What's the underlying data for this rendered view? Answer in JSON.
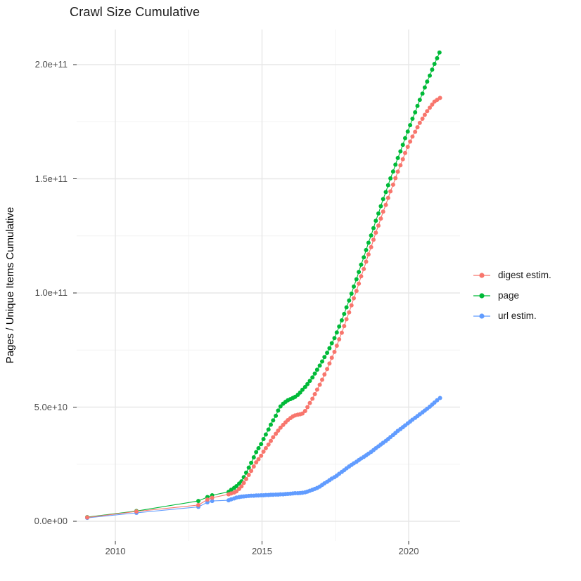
{
  "title": "Crawl Size Cumulative",
  "chart_data": {
    "type": "scatter",
    "title": "Crawl Size Cumulative",
    "xlabel": "",
    "ylabel": "Pages / Unique Items Cumulative",
    "x_tick_labels": [
      "2010",
      "2015",
      "2020"
    ],
    "x_tick_years": [
      2010,
      2015,
      2020
    ],
    "x_minor_years": [
      2012.5,
      2017.5
    ],
    "y_tick_labels": [
      "0.0e+00",
      "5.0e+10",
      "1.0e+11",
      "1.5e+11",
      "2.0e+11"
    ],
    "y_tick_values_e9": [
      0,
      50,
      100,
      150,
      200
    ],
    "y_minor_values_e9": [
      25,
      75,
      125,
      175
    ],
    "y_unit_multiplier": 1000000000,
    "xlim": [
      2008.7,
      2021.8
    ],
    "ylim_e9": [
      -9,
      215
    ],
    "grid": true,
    "legend_position": "right",
    "background": "#ffffff",
    "series": [
      {
        "name": "digest estim.",
        "color": "#F8766D",
        "points": [
          [
            2009.04,
            1.7
          ],
          [
            2010.72,
            4.3
          ],
          [
            2012.83,
            7.1
          ],
          [
            2013.14,
            9.5
          ],
          [
            2013.3,
            10.3
          ],
          [
            2013.86,
            11.8
          ],
          [
            2013.95,
            12.2
          ],
          [
            2014.05,
            12.6
          ],
          [
            2014.13,
            13.1
          ],
          [
            2014.22,
            14.2
          ],
          [
            2014.3,
            15.3
          ],
          [
            2014.38,
            16.8
          ],
          [
            2014.46,
            18.5
          ],
          [
            2014.55,
            20.3
          ],
          [
            2014.63,
            22.1
          ],
          [
            2014.72,
            24.0
          ],
          [
            2014.8,
            25.8
          ],
          [
            2014.88,
            27.2
          ],
          [
            2014.97,
            28.7
          ],
          [
            2015.05,
            30.5
          ],
          [
            2015.13,
            32.0
          ],
          [
            2015.22,
            33.6
          ],
          [
            2015.3,
            35.2
          ],
          [
            2015.38,
            36.8
          ],
          [
            2015.47,
            38.3
          ],
          [
            2015.55,
            39.7
          ],
          [
            2015.63,
            41.0
          ],
          [
            2015.72,
            42.2
          ],
          [
            2015.8,
            43.3
          ],
          [
            2015.88,
            44.3
          ],
          [
            2015.97,
            45.2
          ],
          [
            2016.05,
            45.9
          ],
          [
            2016.13,
            46.4
          ],
          [
            2016.22,
            46.7
          ],
          [
            2016.3,
            46.9
          ],
          [
            2016.38,
            47.2
          ],
          [
            2016.47,
            48.3
          ],
          [
            2016.55,
            50.0
          ],
          [
            2016.63,
            51.8
          ],
          [
            2016.72,
            53.7
          ],
          [
            2016.8,
            55.7
          ],
          [
            2016.88,
            57.7
          ],
          [
            2016.97,
            59.8
          ],
          [
            2017.05,
            62.0
          ],
          [
            2017.13,
            64.3
          ],
          [
            2017.22,
            66.7
          ],
          [
            2017.3,
            69.1
          ],
          [
            2017.38,
            71.6
          ],
          [
            2017.47,
            74.2
          ],
          [
            2017.55,
            76.9
          ],
          [
            2017.63,
            79.7
          ],
          [
            2017.72,
            82.6
          ],
          [
            2017.8,
            85.5
          ],
          [
            2017.88,
            88.5
          ],
          [
            2017.97,
            91.5
          ],
          [
            2018.05,
            94.6
          ],
          [
            2018.13,
            97.7
          ],
          [
            2018.22,
            100.9
          ],
          [
            2018.3,
            104.1
          ],
          [
            2018.38,
            107.3
          ],
          [
            2018.47,
            110.5
          ],
          [
            2018.55,
            113.7
          ],
          [
            2018.63,
            116.9
          ],
          [
            2018.72,
            120.1
          ],
          [
            2018.8,
            123.3
          ],
          [
            2018.88,
            126.4
          ],
          [
            2018.97,
            129.5
          ],
          [
            2019.05,
            132.6
          ],
          [
            2019.13,
            135.6
          ],
          [
            2019.22,
            138.6
          ],
          [
            2019.3,
            141.6
          ],
          [
            2019.38,
            144.5
          ],
          [
            2019.47,
            147.4
          ],
          [
            2019.55,
            150.3
          ],
          [
            2019.63,
            153.1
          ],
          [
            2019.72,
            155.9
          ],
          [
            2019.8,
            158.6
          ],
          [
            2019.88,
            161.3
          ],
          [
            2019.97,
            164.0
          ],
          [
            2020.05,
            166.3
          ],
          [
            2020.13,
            168.5
          ],
          [
            2020.22,
            170.6
          ],
          [
            2020.3,
            172.6
          ],
          [
            2020.38,
            174.5
          ],
          [
            2020.47,
            176.3
          ],
          [
            2020.55,
            178.0
          ],
          [
            2020.63,
            179.6
          ],
          [
            2020.72,
            181.1
          ],
          [
            2020.8,
            182.5
          ],
          [
            2020.88,
            183.8
          ],
          [
            2020.97,
            184.6
          ],
          [
            2021.07,
            185.4
          ]
        ]
      },
      {
        "name": "page",
        "color": "#00BA38",
        "points": [
          [
            2009.04,
            1.8
          ],
          [
            2010.72,
            4.5
          ],
          [
            2012.83,
            8.9
          ],
          [
            2013.14,
            10.6
          ],
          [
            2013.3,
            11.4
          ],
          [
            2013.86,
            12.9
          ],
          [
            2013.95,
            13.8
          ],
          [
            2014.05,
            14.6
          ],
          [
            2014.13,
            15.4
          ],
          [
            2014.22,
            16.5
          ],
          [
            2014.3,
            17.5
          ],
          [
            2014.38,
            19.3
          ],
          [
            2014.46,
            21.3
          ],
          [
            2014.55,
            23.5
          ],
          [
            2014.63,
            25.6
          ],
          [
            2014.72,
            28.0
          ],
          [
            2014.8,
            30.3
          ],
          [
            2014.88,
            32.0
          ],
          [
            2014.97,
            33.8
          ],
          [
            2015.05,
            36.0
          ],
          [
            2015.13,
            38.0
          ],
          [
            2015.22,
            40.2
          ],
          [
            2015.3,
            42.3
          ],
          [
            2015.38,
            44.2
          ],
          [
            2015.47,
            46.2
          ],
          [
            2015.55,
            48.5
          ],
          [
            2015.63,
            50.3
          ],
          [
            2015.72,
            51.5
          ],
          [
            2015.8,
            52.3
          ],
          [
            2015.88,
            53.0
          ],
          [
            2015.97,
            53.5
          ],
          [
            2016.05,
            54.0
          ],
          [
            2016.13,
            54.5
          ],
          [
            2016.22,
            55.4
          ],
          [
            2016.3,
            56.4
          ],
          [
            2016.38,
            57.6
          ],
          [
            2016.47,
            58.8
          ],
          [
            2016.55,
            60.1
          ],
          [
            2016.63,
            61.5
          ],
          [
            2016.72,
            63.0
          ],
          [
            2016.8,
            64.7
          ],
          [
            2016.88,
            66.4
          ],
          [
            2016.97,
            68.2
          ],
          [
            2017.05,
            70.0
          ],
          [
            2017.13,
            71.9
          ],
          [
            2017.22,
            73.8
          ],
          [
            2017.3,
            75.8
          ],
          [
            2017.38,
            78.0
          ],
          [
            2017.47,
            80.2
          ],
          [
            2017.55,
            82.7
          ],
          [
            2017.63,
            85.3
          ],
          [
            2017.72,
            88.0
          ],
          [
            2017.8,
            90.8
          ],
          [
            2017.88,
            93.7
          ],
          [
            2017.97,
            96.7
          ],
          [
            2018.05,
            99.7
          ],
          [
            2018.13,
            102.8
          ],
          [
            2018.22,
            106.0
          ],
          [
            2018.3,
            109.2
          ],
          [
            2018.38,
            112.4
          ],
          [
            2018.47,
            115.6
          ],
          [
            2018.55,
            118.8
          ],
          [
            2018.63,
            122.0
          ],
          [
            2018.72,
            125.2
          ],
          [
            2018.8,
            128.4
          ],
          [
            2018.88,
            131.6
          ],
          [
            2018.97,
            134.8
          ],
          [
            2019.05,
            138.0
          ],
          [
            2019.13,
            141.1
          ],
          [
            2019.22,
            144.2
          ],
          [
            2019.3,
            147.2
          ],
          [
            2019.38,
            150.2
          ],
          [
            2019.47,
            153.2
          ],
          [
            2019.55,
            156.2
          ],
          [
            2019.63,
            159.1
          ],
          [
            2019.72,
            162.0
          ],
          [
            2019.8,
            164.9
          ],
          [
            2019.88,
            167.8
          ],
          [
            2019.97,
            170.7
          ],
          [
            2020.05,
            173.5
          ],
          [
            2020.13,
            176.3
          ],
          [
            2020.22,
            179.1
          ],
          [
            2020.3,
            181.9
          ],
          [
            2020.38,
            184.6
          ],
          [
            2020.47,
            187.3
          ],
          [
            2020.55,
            190.0
          ],
          [
            2020.63,
            192.6
          ],
          [
            2020.72,
            195.2
          ],
          [
            2020.8,
            197.8
          ],
          [
            2020.88,
            200.3
          ],
          [
            2020.97,
            202.8
          ],
          [
            2021.05,
            205.3
          ]
        ]
      },
      {
        "name": "url estim.",
        "color": "#619CFF",
        "points": [
          [
            2009.04,
            1.5
          ],
          [
            2010.72,
            3.7
          ],
          [
            2012.83,
            6.3
          ],
          [
            2013.14,
            8.3
          ],
          [
            2013.3,
            8.9
          ],
          [
            2013.86,
            9.2
          ],
          [
            2013.95,
            9.6
          ],
          [
            2014.05,
            10.0
          ],
          [
            2014.13,
            10.4
          ],
          [
            2014.22,
            10.6
          ],
          [
            2014.3,
            10.8
          ],
          [
            2014.38,
            10.9
          ],
          [
            2014.46,
            11.0
          ],
          [
            2014.55,
            11.1
          ],
          [
            2014.63,
            11.2
          ],
          [
            2014.72,
            11.2
          ],
          [
            2014.8,
            11.3
          ],
          [
            2014.88,
            11.3
          ],
          [
            2014.97,
            11.4
          ],
          [
            2015.05,
            11.4
          ],
          [
            2015.13,
            11.5
          ],
          [
            2015.22,
            11.5
          ],
          [
            2015.3,
            11.6
          ],
          [
            2015.38,
            11.6
          ],
          [
            2015.47,
            11.7
          ],
          [
            2015.55,
            11.7
          ],
          [
            2015.63,
            11.8
          ],
          [
            2015.72,
            11.8
          ],
          [
            2015.8,
            11.9
          ],
          [
            2015.88,
            12.0
          ],
          [
            2015.97,
            12.1
          ],
          [
            2016.05,
            12.2
          ],
          [
            2016.13,
            12.3
          ],
          [
            2016.22,
            12.3
          ],
          [
            2016.3,
            12.4
          ],
          [
            2016.38,
            12.5
          ],
          [
            2016.47,
            12.7
          ],
          [
            2016.55,
            13.0
          ],
          [
            2016.63,
            13.4
          ],
          [
            2016.72,
            13.8
          ],
          [
            2016.8,
            14.2
          ],
          [
            2016.88,
            14.6
          ],
          [
            2016.97,
            15.2
          ],
          [
            2017.05,
            15.9
          ],
          [
            2017.13,
            16.6
          ],
          [
            2017.22,
            17.3
          ],
          [
            2017.3,
            18.0
          ],
          [
            2017.38,
            18.7
          ],
          [
            2017.47,
            19.3
          ],
          [
            2017.55,
            20.0
          ],
          [
            2017.63,
            20.8
          ],
          [
            2017.72,
            21.6
          ],
          [
            2017.8,
            22.4
          ],
          [
            2017.88,
            23.2
          ],
          [
            2017.97,
            24.0
          ],
          [
            2018.05,
            24.7
          ],
          [
            2018.13,
            25.4
          ],
          [
            2018.22,
            26.1
          ],
          [
            2018.3,
            26.8
          ],
          [
            2018.38,
            27.5
          ],
          [
            2018.47,
            28.2
          ],
          [
            2018.55,
            28.9
          ],
          [
            2018.63,
            29.6
          ],
          [
            2018.72,
            30.4
          ],
          [
            2018.8,
            31.2
          ],
          [
            2018.88,
            32.0
          ],
          [
            2018.97,
            32.8
          ],
          [
            2019.05,
            33.6
          ],
          [
            2019.13,
            34.4
          ],
          [
            2019.22,
            35.2
          ],
          [
            2019.3,
            36.0
          ],
          [
            2019.38,
            36.9
          ],
          [
            2019.47,
            37.8
          ],
          [
            2019.55,
            38.7
          ],
          [
            2019.63,
            39.6
          ],
          [
            2019.72,
            40.4
          ],
          [
            2019.8,
            41.2
          ],
          [
            2019.88,
            42.0
          ],
          [
            2019.97,
            42.9
          ],
          [
            2020.05,
            43.7
          ],
          [
            2020.13,
            44.5
          ],
          [
            2020.22,
            45.3
          ],
          [
            2020.3,
            46.1
          ],
          [
            2020.38,
            46.9
          ],
          [
            2020.47,
            47.7
          ],
          [
            2020.55,
            48.5
          ],
          [
            2020.63,
            49.3
          ],
          [
            2020.72,
            50.2
          ],
          [
            2020.8,
            51.1
          ],
          [
            2020.88,
            52.0
          ],
          [
            2020.97,
            53.0
          ],
          [
            2021.07,
            54.0
          ]
        ]
      }
    ],
    "legend": {
      "items": [
        {
          "label": "digest estim.",
          "color": "#F8766D"
        },
        {
          "label": "page",
          "color": "#00BA38"
        },
        {
          "label": "url estim.",
          "color": "#619CFF"
        }
      ]
    },
    "style": {
      "grid_major_color": "#e7e7e7",
      "grid_minor_color": "#f2f2f2",
      "tick_color": "#333333",
      "axis_text_color": "#4d4d4d",
      "point_radius": 3,
      "line_width": 1.1
    }
  }
}
